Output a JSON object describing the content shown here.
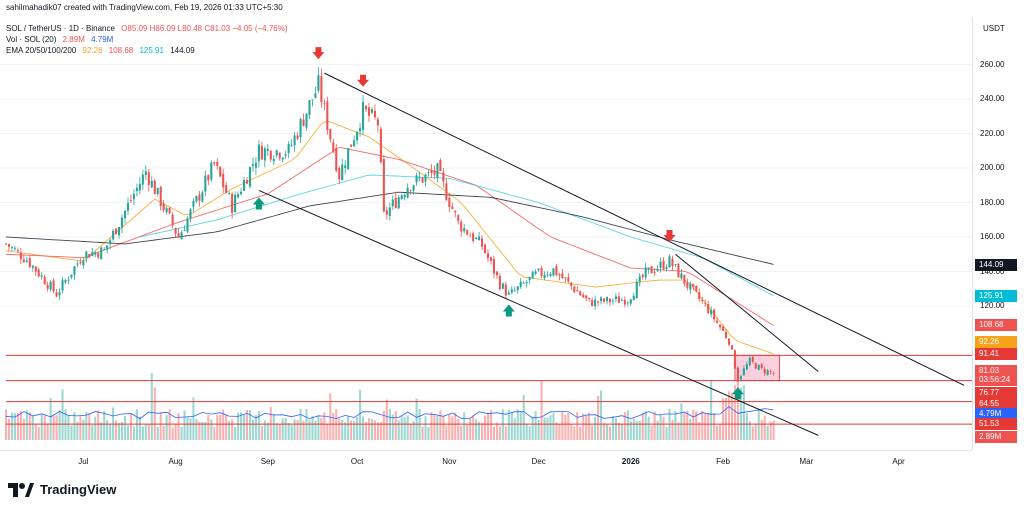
{
  "header": {
    "created_line": "sahilmahadik07 created with TradingView.com, Feb 19, 2026 01:33 UTC+5:30",
    "currency": "USDT"
  },
  "legend": {
    "symbol": "SOL / TetherUS · 1D · Binance",
    "ohlc": "O85.09 H86.09 L80.48 C81.03 −4.05 (−4.76%)",
    "vol_label": "Vol · SOL (20)",
    "vol_value": "2.89M",
    "vol_ma": "4.79M",
    "ema_label": "EMA 20/50/100/200",
    "ema20": "92.26",
    "ema50": "108.68",
    "ema100": "125.91",
    "ema200": "144.09"
  },
  "colors": {
    "up": "#26a69a",
    "down": "#ef5350",
    "ema20": "#f7a21b",
    "ema50": "#ef5350",
    "ema100": "#3fd0e0",
    "ema200": "#131722",
    "trend": "#131722",
    "hline": "#e53935",
    "marker_down": "#e53935",
    "marker_up": "#089981",
    "box": "#f8bbd0",
    "vol_ma": "#2962ff"
  },
  "price_labels": [
    {
      "text": "144.09",
      "bg": "#131722"
    },
    {
      "text": "125.91",
      "bg": "#00bcd4"
    },
    {
      "text": "108.68",
      "bg": "#ef5350"
    },
    {
      "text": "92.26",
      "bg": "#f7a21b"
    },
    {
      "text": "91.41",
      "bg": "#e53935"
    },
    {
      "text": "81.03",
      "bg": "#ef5350"
    },
    {
      "text": "03:56:24",
      "bg": "#ef5350"
    },
    {
      "text": "76.77",
      "bg": "#e53935"
    },
    {
      "text": "64.55",
      "bg": "#e53935"
    },
    {
      "text": "4.79M",
      "bg": "#2962ff"
    },
    {
      "text": "51.53",
      "bg": "#e53935"
    },
    {
      "text": "2.89M",
      "bg": "#ef5350"
    }
  ],
  "logo_text": "TradingView",
  "chart_data": {
    "type": "candlestick",
    "title": "SOL / TetherUS · 1D · Binance",
    "y_ticks": [
      "260.00",
      "240.00",
      "220.00",
      "200.00",
      "180.00",
      "160.00",
      "140.00",
      "120.00"
    ],
    "ylim": [
      40,
      280
    ],
    "x_ticks": [
      {
        "label": "Jul",
        "date": "2025-07-01",
        "bold": false
      },
      {
        "label": "Aug",
        "date": "2025-08-01",
        "bold": false
      },
      {
        "label": "Sep",
        "date": "2025-09-01",
        "bold": false
      },
      {
        "label": "Oct",
        "date": "2025-10-01",
        "bold": false
      },
      {
        "label": "Nov",
        "date": "2025-11-01",
        "bold": false
      },
      {
        "label": "Dec",
        "date": "2025-12-01",
        "bold": false
      },
      {
        "label": "2026",
        "date": "2026-01-01",
        "bold": true
      },
      {
        "label": "Feb",
        "date": "2026-02-01",
        "bold": false
      },
      {
        "label": "Mar",
        "date": "2026-03-01",
        "bold": false
      },
      {
        "label": "Apr",
        "date": "2026-04-01",
        "bold": false
      }
    ],
    "start_date": "2025-06-05",
    "end_date": "2026-04-25",
    "anchors": [
      [
        "2025-06-05",
        156
      ],
      [
        "2025-06-12",
        147
      ],
      [
        "2025-06-22",
        127
      ],
      [
        "2025-07-01",
        150
      ],
      [
        "2025-07-08",
        152
      ],
      [
        "2025-07-22",
        198
      ],
      [
        "2025-08-02",
        160
      ],
      [
        "2025-08-14",
        202
      ],
      [
        "2025-08-20",
        178
      ],
      [
        "2025-08-29",
        210
      ],
      [
        "2025-09-08",
        210
      ],
      [
        "2025-09-18",
        248
      ],
      [
        "2025-09-25",
        196
      ],
      [
        "2025-10-03",
        233
      ],
      [
        "2025-10-08",
        226
      ],
      [
        "2025-10-10",
        172
      ],
      [
        "2025-10-18",
        190
      ],
      [
        "2025-10-28",
        198
      ],
      [
        "2025-11-04",
        168
      ],
      [
        "2025-11-12",
        155
      ],
      [
        "2025-11-18",
        133
      ],
      [
        "2025-11-21",
        126
      ],
      [
        "2025-11-30",
        138
      ],
      [
        "2025-12-06",
        141
      ],
      [
        "2025-12-18",
        122
      ],
      [
        "2025-12-31",
        124
      ],
      [
        "2026-01-06",
        139
      ],
      [
        "2026-01-14",
        146
      ],
      [
        "2026-01-20",
        132
      ],
      [
        "2026-01-27",
        118
      ],
      [
        "2026-02-03",
        100
      ],
      [
        "2026-02-06",
        78
      ],
      [
        "2026-02-10",
        88
      ],
      [
        "2026-02-14",
        83
      ],
      [
        "2026-02-18",
        81
      ]
    ],
    "ema": {
      "ema20": [
        [
          "2025-06-05",
          152
        ],
        [
          "2025-07-01",
          146
        ],
        [
          "2025-07-25",
          182
        ],
        [
          "2025-08-05",
          172
        ],
        [
          "2025-08-20",
          188
        ],
        [
          "2025-09-10",
          205
        ],
        [
          "2025-09-20",
          228
        ],
        [
          "2025-10-05",
          218
        ],
        [
          "2025-10-20",
          200
        ],
        [
          "2025-11-05",
          180
        ],
        [
          "2025-11-25",
          137
        ],
        [
          "2025-12-20",
          131
        ],
        [
          "2026-01-10",
          135
        ],
        [
          "2026-01-20",
          135
        ],
        [
          "2026-02-05",
          100
        ],
        [
          "2026-02-18",
          92.26
        ]
      ],
      "ema50": [
        [
          "2025-06-05",
          150
        ],
        [
          "2025-07-01",
          148
        ],
        [
          "2025-08-01",
          168
        ],
        [
          "2025-09-01",
          185
        ],
        [
          "2025-09-25",
          212
        ],
        [
          "2025-10-15",
          205
        ],
        [
          "2025-11-10",
          190
        ],
        [
          "2025-12-05",
          160
        ],
        [
          "2026-01-01",
          142
        ],
        [
          "2026-01-20",
          140
        ],
        [
          "2026-02-18",
          108.68
        ]
      ],
      "ema100": [
        [
          "2025-07-20",
          160
        ],
        [
          "2025-08-15",
          170
        ],
        [
          "2025-09-10",
          184
        ],
        [
          "2025-10-05",
          196
        ],
        [
          "2025-11-01",
          194
        ],
        [
          "2025-12-01",
          180
        ],
        [
          "2026-01-01",
          160
        ],
        [
          "2026-01-25",
          148
        ],
        [
          "2026-02-18",
          125.91
        ]
      ],
      "ema200": [
        [
          "2025-06-05",
          160
        ],
        [
          "2025-07-15",
          156
        ],
        [
          "2025-08-15",
          163
        ],
        [
          "2025-09-15",
          178
        ],
        [
          "2025-10-15",
          186
        ],
        [
          "2025-11-15",
          183
        ],
        [
          "2025-12-15",
          172
        ],
        [
          "2026-01-15",
          158
        ],
        [
          "2026-02-18",
          144.09
        ]
      ]
    },
    "trendlines": [
      {
        "name": "upper-channel",
        "from": [
          "2025-09-20",
          255
        ],
        "to": [
          "2026-04-23",
          74
        ]
      },
      {
        "name": "lower-channel",
        "from": [
          "2025-08-29",
          187
        ],
        "to": [
          "2026-03-05",
          45
        ]
      },
      {
        "name": "recent-resistance",
        "from": [
          "2026-01-16",
          150
        ],
        "to": [
          "2026-03-05",
          82
        ]
      }
    ],
    "horizontal_levels": [
      91.41,
      76.77,
      64.55,
      51.53
    ],
    "consolidation_box": {
      "from": "2026-02-05",
      "to": "2026-02-20",
      "top": 91.41,
      "bottom": 76.77
    },
    "markers": [
      {
        "type": "down",
        "date": "2025-09-18",
        "price": 266
      },
      {
        "type": "down",
        "date": "2025-10-03",
        "price": 250
      },
      {
        "type": "down",
        "date": "2026-01-14",
        "price": 160
      },
      {
        "type": "up",
        "date": "2025-08-29",
        "price": 180
      },
      {
        "type": "up",
        "date": "2025-11-21",
        "price": 118
      },
      {
        "type": "up",
        "date": "2026-02-06",
        "price": 70
      }
    ],
    "volume": {
      "ymax_millions": 12,
      "ma": 4.79,
      "last": 2.89
    }
  }
}
